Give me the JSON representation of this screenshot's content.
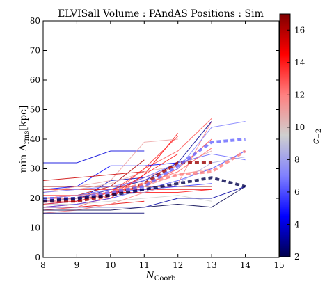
{
  "chart_data": {
    "type": "line",
    "title": "ELVISall   Volume : PAndAS   Positions : Sim",
    "xlabel_main": "N",
    "xlabel_sub": "Coorb",
    "ylabel_main": "min Δ",
    "ylabel_sub": "rms",
    "ylabel_unit": "[kpc]",
    "xlim": [
      8,
      15
    ],
    "ylim": [
      0,
      80
    ],
    "x_ticks": [
      "8",
      "9",
      "10",
      "11",
      "12",
      "13",
      "14",
      "15"
    ],
    "y_ticks": [
      "0",
      "10",
      "20",
      "30",
      "40",
      "50",
      "60",
      "70",
      "80"
    ],
    "grid": false,
    "colorbar": {
      "label_main": "c",
      "label_sub": "−2",
      "range": [
        2,
        17
      ],
      "ticks": [
        "2",
        "4",
        "6",
        "8",
        "10",
        "12",
        "14",
        "16"
      ],
      "colormap": "seismic-like",
      "stops": [
        "#00004c",
        "#0000ff",
        "#8080ff",
        "#cfcfcf",
        "#ff8080",
        "#ff0000",
        "#7f0000"
      ]
    },
    "series": [
      {
        "c": 16,
        "x": [
          8,
          9,
          10,
          11
        ],
        "y": [
          20,
          21,
          24,
          33
        ]
      },
      {
        "c": 15,
        "x": [
          8,
          9,
          10,
          11
        ],
        "y": [
          17,
          17,
          18,
          19
        ]
      },
      {
        "c": 12,
        "x": [
          8,
          9,
          10,
          11,
          12,
          13
        ],
        "y": [
          15,
          16,
          18,
          22,
          25,
          46
        ]
      },
      {
        "c": 3,
        "x": [
          8,
          9,
          10,
          11,
          12,
          13
        ],
        "y": [
          19,
          20,
          23,
          26,
          32,
          46
        ]
      },
      {
        "c": 13,
        "x": [
          8,
          9,
          10,
          11,
          12,
          13
        ],
        "y": [
          16,
          17,
          21,
          30,
          36,
          47
        ]
      },
      {
        "c": 2,
        "x": [
          8,
          9,
          10,
          11,
          12,
          13,
          14
        ],
        "y": [
          16,
          16,
          16,
          17,
          18,
          17,
          24
        ]
      },
      {
        "c": 4,
        "x": [
          8,
          9,
          10,
          11
        ],
        "y": [
          32,
          32,
          36,
          36
        ]
      },
      {
        "c": 3.5,
        "x": [
          8,
          9,
          10,
          11
        ],
        "y": [
          18,
          19,
          26,
          27
        ]
      },
      {
        "c": 4.5,
        "x": [
          8,
          9,
          10,
          11,
          12
        ],
        "y": [
          23,
          24,
          31,
          31,
          32
        ]
      },
      {
        "c": 15,
        "x": [
          8,
          9,
          10,
          11,
          12,
          13
        ],
        "y": [
          23,
          23,
          23,
          23,
          23,
          23
        ]
      },
      {
        "c": 16.5,
        "x": [
          8,
          9,
          10,
          11,
          12,
          13
        ],
        "y": [
          24,
          24,
          24,
          24,
          24,
          24
        ]
      },
      {
        "c": 14,
        "x": [
          8,
          9,
          10,
          11,
          12,
          13
        ],
        "y": [
          21,
          21,
          22,
          22,
          22,
          23
        ]
      },
      {
        "c": 12,
        "x": [
          8,
          9,
          10,
          11,
          12
        ],
        "y": [
          21,
          21,
          22,
          27,
          31
        ]
      },
      {
        "c": 14.5,
        "x": [
          8,
          9,
          10,
          11,
          12
        ],
        "y": [
          17,
          18,
          20,
          28,
          42
        ]
      },
      {
        "c": 13,
        "x": [
          8,
          9,
          10,
          11,
          12,
          13
        ],
        "y": [
          20,
          20,
          22,
          24,
          30,
          40
        ]
      },
      {
        "c": 11,
        "x": [
          8,
          9,
          10,
          11,
          12
        ],
        "y": [
          22,
          24,
          26,
          39,
          40
        ]
      },
      {
        "c": 10.5,
        "x": [
          8,
          9,
          10,
          11,
          12,
          13
        ],
        "y": [
          22,
          23,
          25,
          29,
          31,
          36
        ]
      },
      {
        "c": 7,
        "x": [
          8,
          9,
          10,
          11,
          12,
          13,
          14
        ],
        "y": [
          22,
          23,
          24,
          26,
          30,
          44,
          46
        ]
      },
      {
        "c": 6.5,
        "x": [
          8,
          9,
          10,
          11,
          12,
          13,
          14
        ],
        "y": [
          20,
          21,
          23,
          27,
          32,
          35,
          33
        ]
      },
      {
        "c": 9.5,
        "x": [
          8,
          9,
          10,
          11,
          12,
          13
        ],
        "y": [
          18,
          18,
          19,
          20,
          21,
          19
        ]
      },
      {
        "c": 3.2,
        "x": [
          8,
          9,
          10,
          11,
          12,
          13,
          14
        ],
        "y": [
          17,
          17,
          17,
          17,
          20,
          20,
          24
        ]
      },
      {
        "c": 5.5,
        "x": [
          8,
          9,
          10,
          11,
          12,
          13
        ],
        "y": [
          20,
          21,
          22,
          23,
          24,
          25
        ]
      },
      {
        "c": 12.5,
        "x": [
          8,
          9,
          10,
          11,
          12,
          13
        ],
        "y": [
          19,
          19,
          21,
          25,
          29,
          37
        ]
      },
      {
        "c": 15.5,
        "x": [
          8,
          9,
          10,
          11
        ],
        "y": [
          26,
          27,
          28,
          29
        ]
      },
      {
        "c": 11.5,
        "x": [
          8,
          9,
          10,
          11,
          12,
          13
        ],
        "y": [
          20,
          21,
          22,
          24,
          28,
          30
        ]
      },
      {
        "c": 6,
        "x": [
          8,
          9,
          10,
          11,
          12,
          13,
          14
        ],
        "y": [
          17,
          18,
          20,
          23,
          26,
          30,
          36
        ]
      },
      {
        "c": 14,
        "x": [
          8,
          9,
          10,
          11,
          12
        ],
        "y": [
          19,
          20,
          21,
          28,
          35
        ]
      },
      {
        "c": 2.5,
        "x": [
          8,
          9,
          10,
          11
        ],
        "y": [
          15,
          15,
          15,
          15
        ]
      },
      {
        "c": 8.5,
        "x": [
          8,
          9,
          10,
          11,
          12,
          13,
          14
        ],
        "y": [
          19,
          20,
          21,
          22,
          25,
          32,
          34
        ]
      },
      {
        "c": 13.5,
        "x": [
          8,
          9,
          10,
          11,
          12
        ],
        "y": [
          18,
          19,
          22,
          30,
          41
        ]
      }
    ],
    "median_series": [
      {
        "c": 16.5,
        "x": [
          8,
          9,
          10,
          11,
          12,
          13
        ],
        "y": [
          19,
          19,
          21,
          25,
          32,
          32
        ]
      },
      {
        "c": 12,
        "x": [
          8,
          9,
          10,
          11,
          12,
          13,
          14
        ],
        "y": [
          19,
          20,
          22,
          25,
          28,
          29,
          36
        ]
      },
      {
        "c": 6.5,
        "x": [
          8,
          9,
          10,
          11,
          12,
          13,
          14
        ],
        "y": [
          20,
          20,
          22,
          24,
          31,
          39,
          40
        ]
      },
      {
        "c": 2,
        "x": [
          8,
          9,
          10,
          11,
          12,
          13,
          14
        ],
        "y": [
          19,
          20,
          21,
          23,
          25,
          27,
          24
        ]
      }
    ]
  }
}
